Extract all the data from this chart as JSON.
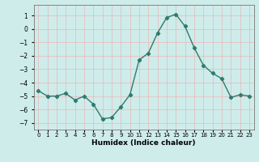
{
  "x": [
    0,
    1,
    2,
    3,
    4,
    5,
    6,
    7,
    8,
    9,
    10,
    11,
    12,
    13,
    14,
    15,
    16,
    17,
    18,
    19,
    20,
    21,
    22,
    23
  ],
  "y": [
    -4.6,
    -5.0,
    -5.0,
    -4.8,
    -5.3,
    -5.0,
    -5.6,
    -6.7,
    -6.6,
    -5.8,
    -4.9,
    -2.3,
    -1.8,
    -0.3,
    0.85,
    1.1,
    0.2,
    -1.4,
    -2.7,
    -3.3,
    -3.7,
    -5.1,
    -4.9,
    -5.0
  ],
  "line_color": "#2e7b6e",
  "marker": "D",
  "markersize": 2.2,
  "linewidth": 1.0,
  "xlabel": "Humidex (Indice chaleur)",
  "xlim": [
    -0.5,
    23.5
  ],
  "ylim": [
    -7.5,
    1.8
  ],
  "yticks": [
    1,
    0,
    -1,
    -2,
    -3,
    -4,
    -5,
    -6,
    -7
  ],
  "xtick_labels": [
    "0",
    "1",
    "2",
    "3",
    "4",
    "5",
    "6",
    "7",
    "8",
    "9",
    "10",
    "11",
    "12",
    "13",
    "14",
    "15",
    "16",
    "17",
    "18",
    "19",
    "20",
    "21",
    "22",
    "23"
  ],
  "bg_color": "#ceecea",
  "grid_color": "#e8b8b8"
}
